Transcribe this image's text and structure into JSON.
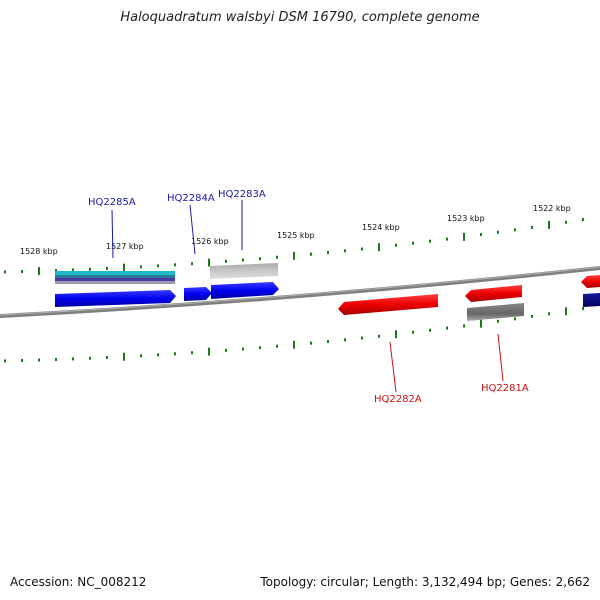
{
  "title": "Haloquadratum walsbyi DSM 16790, complete genome",
  "footer": {
    "accession": "Accession: NC_008212",
    "summary": "Topology: circular; Length: 3,132,494 bp; Genes: 2,662"
  },
  "colors": {
    "forward_gene": "#0000ee",
    "reverse_gene": "#ee0000",
    "tick": "#1a7a1a",
    "backbone": "#7f7f7f",
    "forward_label": "#1a1aa6",
    "reverse_label": "#cc1111"
  },
  "kbp_labels": [
    "1528 kbp",
    "1527 kbp",
    "1526 kbp",
    "1525 kbp",
    "1524 kbp",
    "1523 kbp",
    "1522 kbp"
  ],
  "gene_labels": {
    "forward": [
      "HQ2285A",
      "HQ2284A",
      "HQ2283A"
    ],
    "reverse": [
      "HQ2282A",
      "HQ2281A"
    ]
  }
}
